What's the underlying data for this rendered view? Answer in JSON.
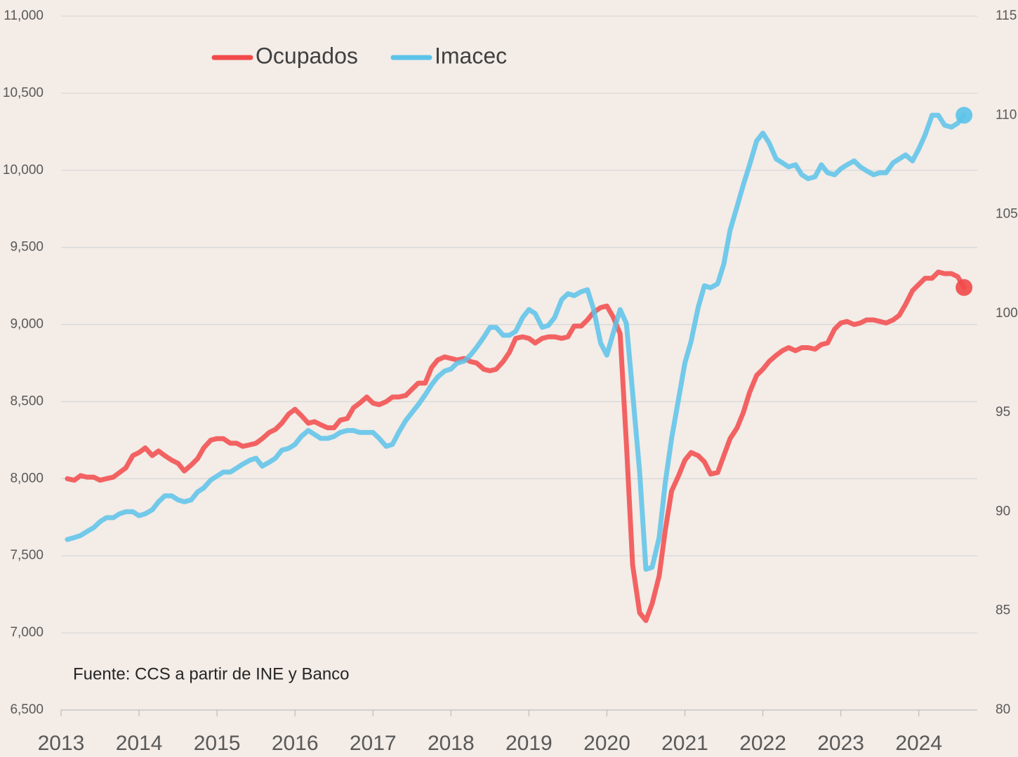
{
  "chart_data": {
    "type": "line",
    "annotation": "Fuente: CCS a partir de INE y Banco",
    "legend": "top",
    "grid": true,
    "xlim": [
      2013,
      2024.75
    ],
    "xticks": [
      2013,
      2014,
      2015,
      2016,
      2017,
      2018,
      2019,
      2020,
      2021,
      2022,
      2023,
      2024
    ],
    "ylim": [
      6500,
      11000
    ],
    "yticks": [
      {
        "value": 6500,
        "label": "6,500"
      },
      {
        "value": 7000,
        "label": "7,000"
      },
      {
        "value": 7500,
        "label": "7,500"
      },
      {
        "value": 8000,
        "label": "8,000"
      },
      {
        "value": 8500,
        "label": "8,500"
      },
      {
        "value": 9000,
        "label": "9,000"
      },
      {
        "value": 9500,
        "label": "9,500"
      },
      {
        "value": 10000,
        "label": "10,000"
      },
      {
        "value": 10500,
        "label": "10,500"
      },
      {
        "value": 11000,
        "label": "11,000"
      }
    ],
    "y2lim": [
      80,
      115
    ],
    "y2ticks": [
      80,
      85,
      90,
      95,
      100,
      105,
      110,
      115
    ],
    "x": [
      2013.08,
      2013.17,
      2013.25,
      2013.33,
      2013.42,
      2013.5,
      2013.58,
      2013.67,
      2013.75,
      2013.83,
      2013.92,
      2014,
      2014.08,
      2014.17,
      2014.25,
      2014.33,
      2014.42,
      2014.5,
      2014.58,
      2014.67,
      2014.75,
      2014.83,
      2014.92,
      2015,
      2015.08,
      2015.17,
      2015.25,
      2015.33,
      2015.42,
      2015.5,
      2015.58,
      2015.67,
      2015.75,
      2015.83,
      2015.92,
      2016,
      2016.08,
      2016.17,
      2016.25,
      2016.33,
      2016.42,
      2016.5,
      2016.58,
      2016.67,
      2016.75,
      2016.83,
      2016.92,
      2017,
      2017.08,
      2017.17,
      2017.25,
      2017.33,
      2017.42,
      2017.5,
      2017.58,
      2017.67,
      2017.75,
      2017.83,
      2017.92,
      2018,
      2018.08,
      2018.17,
      2018.25,
      2018.33,
      2018.42,
      2018.5,
      2018.58,
      2018.67,
      2018.75,
      2018.83,
      2018.92,
      2019,
      2019.08,
      2019.17,
      2019.25,
      2019.33,
      2019.42,
      2019.5,
      2019.58,
      2019.67,
      2019.75,
      2019.83,
      2019.92,
      2020,
      2020.08,
      2020.17,
      2020.25,
      2020.33,
      2020.42,
      2020.5,
      2020.58,
      2020.67,
      2020.75,
      2020.83,
      2020.92,
      2021,
      2021.08,
      2021.17,
      2021.25,
      2021.33,
      2021.42,
      2021.5,
      2021.58,
      2021.67,
      2021.75,
      2021.83,
      2021.92,
      2022,
      2022.08,
      2022.17,
      2022.25,
      2022.33,
      2022.42,
      2022.5,
      2022.58,
      2022.67,
      2022.75,
      2022.83,
      2022.92,
      2023,
      2023.08,
      2023.17,
      2023.25,
      2023.33,
      2023.42,
      2023.5,
      2023.58,
      2023.67,
      2023.75,
      2023.83,
      2023.92,
      2024,
      2024.08,
      2024.17,
      2024.25,
      2024.33,
      2024.42,
      2024.5,
      2024.58
    ],
    "series": [
      {
        "name": "Ocupados",
        "color": "#f24a4a",
        "axis": "y",
        "values": [
          8000,
          7990,
          8020,
          8010,
          8010,
          7990,
          8000,
          8010,
          8040,
          8070,
          8150,
          8170,
          8200,
          8150,
          8180,
          8150,
          8120,
          8100,
          8050,
          8090,
          8130,
          8200,
          8250,
          8260,
          8260,
          8230,
          8230,
          8210,
          8220,
          8230,
          8260,
          8300,
          8320,
          8360,
          8420,
          8450,
          8410,
          8360,
          8370,
          8350,
          8330,
          8330,
          8380,
          8390,
          8460,
          8490,
          8530,
          8490,
          8480,
          8500,
          8530,
          8530,
          8540,
          8580,
          8620,
          8620,
          8720,
          8770,
          8790,
          8780,
          8770,
          8780,
          8760,
          8750,
          8710,
          8700,
          8710,
          8760,
          8820,
          8910,
          8920,
          8910,
          8880,
          8910,
          8920,
          8920,
          8910,
          8920,
          8990,
          8990,
          9030,
          9080,
          9110,
          9120,
          9050,
          8940,
          8230,
          7440,
          7130,
          7080,
          7190,
          7370,
          7670,
          7920,
          8020,
          8120,
          8170,
          8150,
          8110,
          8030,
          8040,
          8150,
          8260,
          8330,
          8430,
          8560,
          8670,
          8710,
          8760,
          8800,
          8830,
          8850,
          8830,
          8850,
          8850,
          8840,
          8870,
          8880,
          8970,
          9010,
          9020,
          9000,
          9010,
          9030,
          9030,
          9020,
          9010,
          9030,
          9060,
          9130,
          9220,
          9260,
          9300,
          9300,
          9340,
          9330,
          9330,
          9310,
          9240
        ]
      },
      {
        "name": "Imacec",
        "color": "#5bc3ea",
        "axis": "y2",
        "values": [
          88.6,
          88.7,
          88.8,
          89.0,
          89.2,
          89.5,
          89.7,
          89.7,
          89.9,
          90.0,
          90.0,
          89.8,
          89.9,
          90.1,
          90.5,
          90.8,
          90.8,
          90.6,
          90.5,
          90.6,
          91.0,
          91.2,
          91.6,
          91.8,
          92.0,
          92.0,
          92.2,
          92.4,
          92.6,
          92.7,
          92.3,
          92.5,
          92.7,
          93.1,
          93.2,
          93.4,
          93.8,
          94.1,
          93.9,
          93.7,
          93.7,
          93.8,
          94.0,
          94.1,
          94.1,
          94.0,
          94.0,
          94.0,
          93.7,
          93.3,
          93.4,
          94.0,
          94.6,
          95.0,
          95.4,
          95.9,
          96.4,
          96.8,
          97.1,
          97.2,
          97.5,
          97.6,
          97.9,
          98.3,
          98.8,
          99.3,
          99.3,
          98.9,
          98.9,
          99.1,
          99.8,
          100.2,
          100.0,
          99.3,
          99.4,
          99.8,
          100.7,
          101.0,
          100.9,
          101.1,
          101.2,
          100.2,
          98.5,
          97.9,
          99.0,
          100.2,
          99.5,
          96.0,
          92.0,
          87.1,
          87.2,
          88.7,
          91.5,
          93.7,
          95.7,
          97.5,
          98.6,
          100.3,
          101.4,
          101.3,
          101.5,
          102.5,
          104.2,
          105.4,
          106.5,
          107.5,
          108.7,
          109.1,
          108.6,
          107.8,
          107.6,
          107.4,
          107.5,
          107.0,
          106.8,
          106.9,
          107.5,
          107.1,
          107.0,
          107.3,
          107.5,
          107.7,
          107.4,
          107.2,
          107.0,
          107.1,
          107.1,
          107.6,
          107.8,
          108.0,
          107.7,
          108.3,
          109.0,
          110.0,
          110.0,
          109.5,
          109.4,
          109.6,
          110.0
        ]
      }
    ]
  }
}
